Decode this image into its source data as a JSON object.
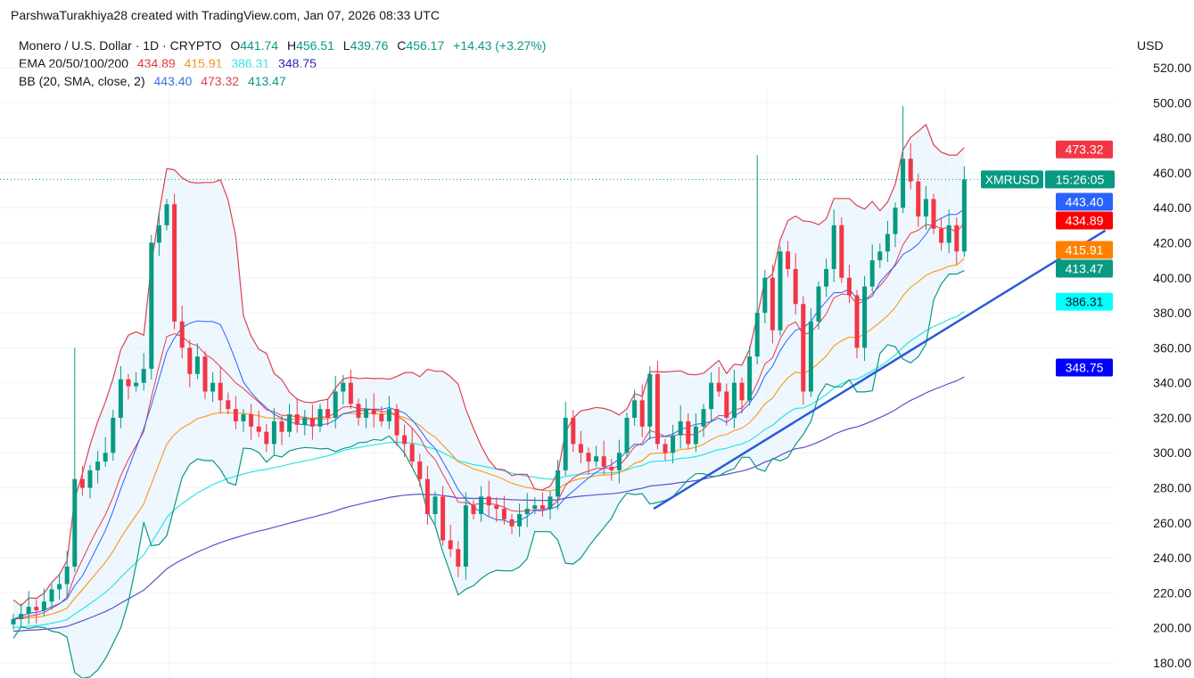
{
  "credit": "ParshwaTurakhiya28 created with TradingView.com, Jan 07, 2026 08:33 UTC",
  "legend": {
    "symbol": "Monero / U.S. Dollar · 1D · CRYPTO",
    "o_label": "O",
    "o": "441.74",
    "h_label": "H",
    "h": "456.51",
    "l_label": "L",
    "l": "439.76",
    "c_label": "C",
    "c": "456.17",
    "change": "+14.43 (+3.27%)",
    "ema_label": "EMA 20/50/100/200",
    "ema": [
      "434.89",
      "415.91",
      "386.31",
      "348.75"
    ],
    "bb_label": "BB (20, SMA, close, 2)",
    "bb": [
      "443.40",
      "473.32",
      "413.47"
    ]
  },
  "currency": "USD",
  "colors": {
    "up": "#089981",
    "down": "#f23645",
    "ema20": "#f23645",
    "ema50": "#ff8c00",
    "ema100": "#26e6e6",
    "ema200": "#5b4fc9",
    "bb_basis": "#2962ff",
    "bb_upper": "#e0404f",
    "bb_lower": "#089981",
    "bb_fill": "#e3f2fd",
    "trend": "#2a5bd7"
  },
  "chart_data": {
    "type": "candlestick",
    "title": "Monero / U.S. Dollar · 1D · CRYPTO",
    "ylim": [
      180,
      520
    ],
    "yticks": [
      "180.00",
      "200.00",
      "220.00",
      "240.00",
      "260.00",
      "280.00",
      "300.00",
      "320.00",
      "340.00",
      "360.00",
      "380.00",
      "400.00",
      "420.00",
      "440.00",
      "460.00",
      "480.00",
      "500.00",
      "520.00"
    ],
    "close": [
      205,
      208,
      212,
      210,
      215,
      222,
      225,
      235,
      285,
      280,
      290,
      295,
      300,
      320,
      342,
      338,
      340,
      348,
      420,
      430,
      442,
      375,
      360,
      345,
      355,
      335,
      340,
      330,
      325,
      318,
      322,
      315,
      312,
      305,
      318,
      312,
      322,
      316,
      320,
      315,
      325,
      320,
      335,
      340,
      328,
      320,
      325,
      322,
      318,
      325,
      310,
      305,
      295,
      285,
      265,
      275,
      250,
      245,
      235,
      270,
      265,
      275,
      270,
      268,
      262,
      258,
      265,
      268,
      270,
      268,
      275,
      290,
      320,
      305,
      300,
      295,
      298,
      292,
      290,
      300,
      320,
      330,
      315,
      345,
      305,
      300,
      310,
      318,
      305,
      315,
      325,
      340,
      335,
      320,
      340,
      330,
      355,
      380,
      400,
      370,
      415,
      405,
      385,
      335,
      375,
      395,
      405,
      430,
      400,
      390,
      360,
      395,
      410,
      415,
      425,
      440,
      468,
      455,
      435,
      445,
      428,
      420,
      430,
      415,
      456.17
    ],
    "spikes": [
      {
        "index": 8,
        "high": 360
      },
      {
        "index": 97,
        "high": 470
      },
      {
        "index": 116,
        "high": 498
      }
    ],
    "trendline": {
      "from": {
        "index": 83.5,
        "price": 268
      },
      "to": {
        "index": 142.4,
        "price": 427
      }
    },
    "last_price_label": {
      "symbol": "XMRUSD",
      "countdown": "15:26:05",
      "price": 456.17
    },
    "price_labels": [
      {
        "text": "473.32",
        "price": 473.32,
        "color": "#f23645"
      },
      {
        "text": "443.40",
        "price": 443.4,
        "color": "#2962ff"
      },
      {
        "text": "434.89",
        "price": 434.89,
        "color": "#ff0000"
      },
      {
        "text": "415.91",
        "price": 415.91,
        "color": "#ff8000"
      },
      {
        "text": "413.47",
        "price": 413.47,
        "color": "#089981"
      },
      {
        "text": "386.31",
        "price": 386.31,
        "color": "#00ffff",
        "dark": true
      },
      {
        "text": "348.75",
        "price": 348.75,
        "color": "#0000ff"
      }
    ]
  }
}
